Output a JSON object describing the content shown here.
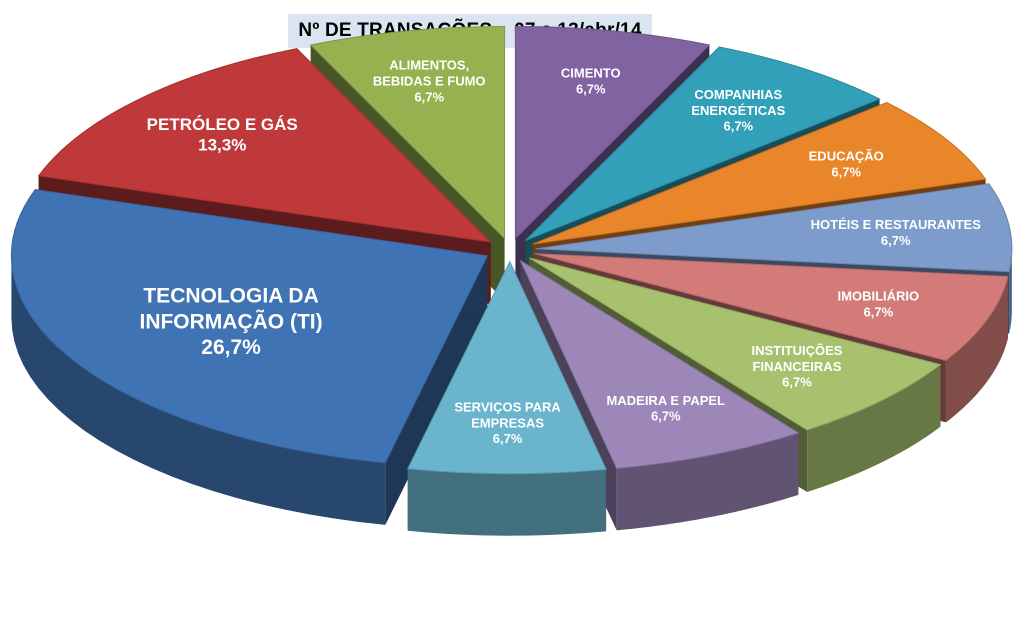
{
  "chart_data": {
    "type": "pie",
    "title": "Nº DE TRANSAÇÕES    07 a 13/abr/14",
    "slices": [
      {
        "label": [
          "CIMENTO"
        ],
        "value": 6.7,
        "value_label": "6,7%",
        "color": "#8064a2"
      },
      {
        "label": [
          "COMPANHIAS",
          "ENERGÉTICAS"
        ],
        "value": 6.7,
        "value_label": "6,7%",
        "color": "#31a0b8"
      },
      {
        "label": [
          "EDUCAÇÃO"
        ],
        "value": 6.7,
        "value_label": "6,7%",
        "color": "#e9862a"
      },
      {
        "label": [
          "HOTÉIS E RESTAURANTES"
        ],
        "value": 6.7,
        "value_label": "6,7%",
        "color": "#7d9bcb"
      },
      {
        "label": [
          "IMOBILIÁRIO"
        ],
        "value": 6.7,
        "value_label": "6,7%",
        "color": "#d27b79"
      },
      {
        "label": [
          "INSTITUIÇÕES",
          "FINANCEIRAS"
        ],
        "value": 6.7,
        "value_label": "6,7%",
        "color": "#a8c16f"
      },
      {
        "label": [
          "MADEIRA E PAPEL"
        ],
        "value": 6.7,
        "value_label": "6,7%",
        "color": "#9c87b8"
      },
      {
        "label": [
          "SERVIÇOS PARA",
          "EMPRESAS"
        ],
        "value": 6.7,
        "value_label": "6,7%",
        "color": "#6ab5cd"
      },
      {
        "label": [
          "TECNOLOGIA DA",
          "INFORMAÇÃO (TI)"
        ],
        "value": 26.7,
        "value_label": "26,7%",
        "color": "#3f73b3"
      },
      {
        "label": [
          "PETRÓLEO E GÁS"
        ],
        "value": 13.3,
        "value_label": "13,3%",
        "color": "#c0393a"
      },
      {
        "label": [
          "ALIMENTOS,",
          "BEBIDAS E FUMO"
        ],
        "value": 6.7,
        "value_label": "6,7%",
        "color": "#96b250"
      }
    ]
  }
}
